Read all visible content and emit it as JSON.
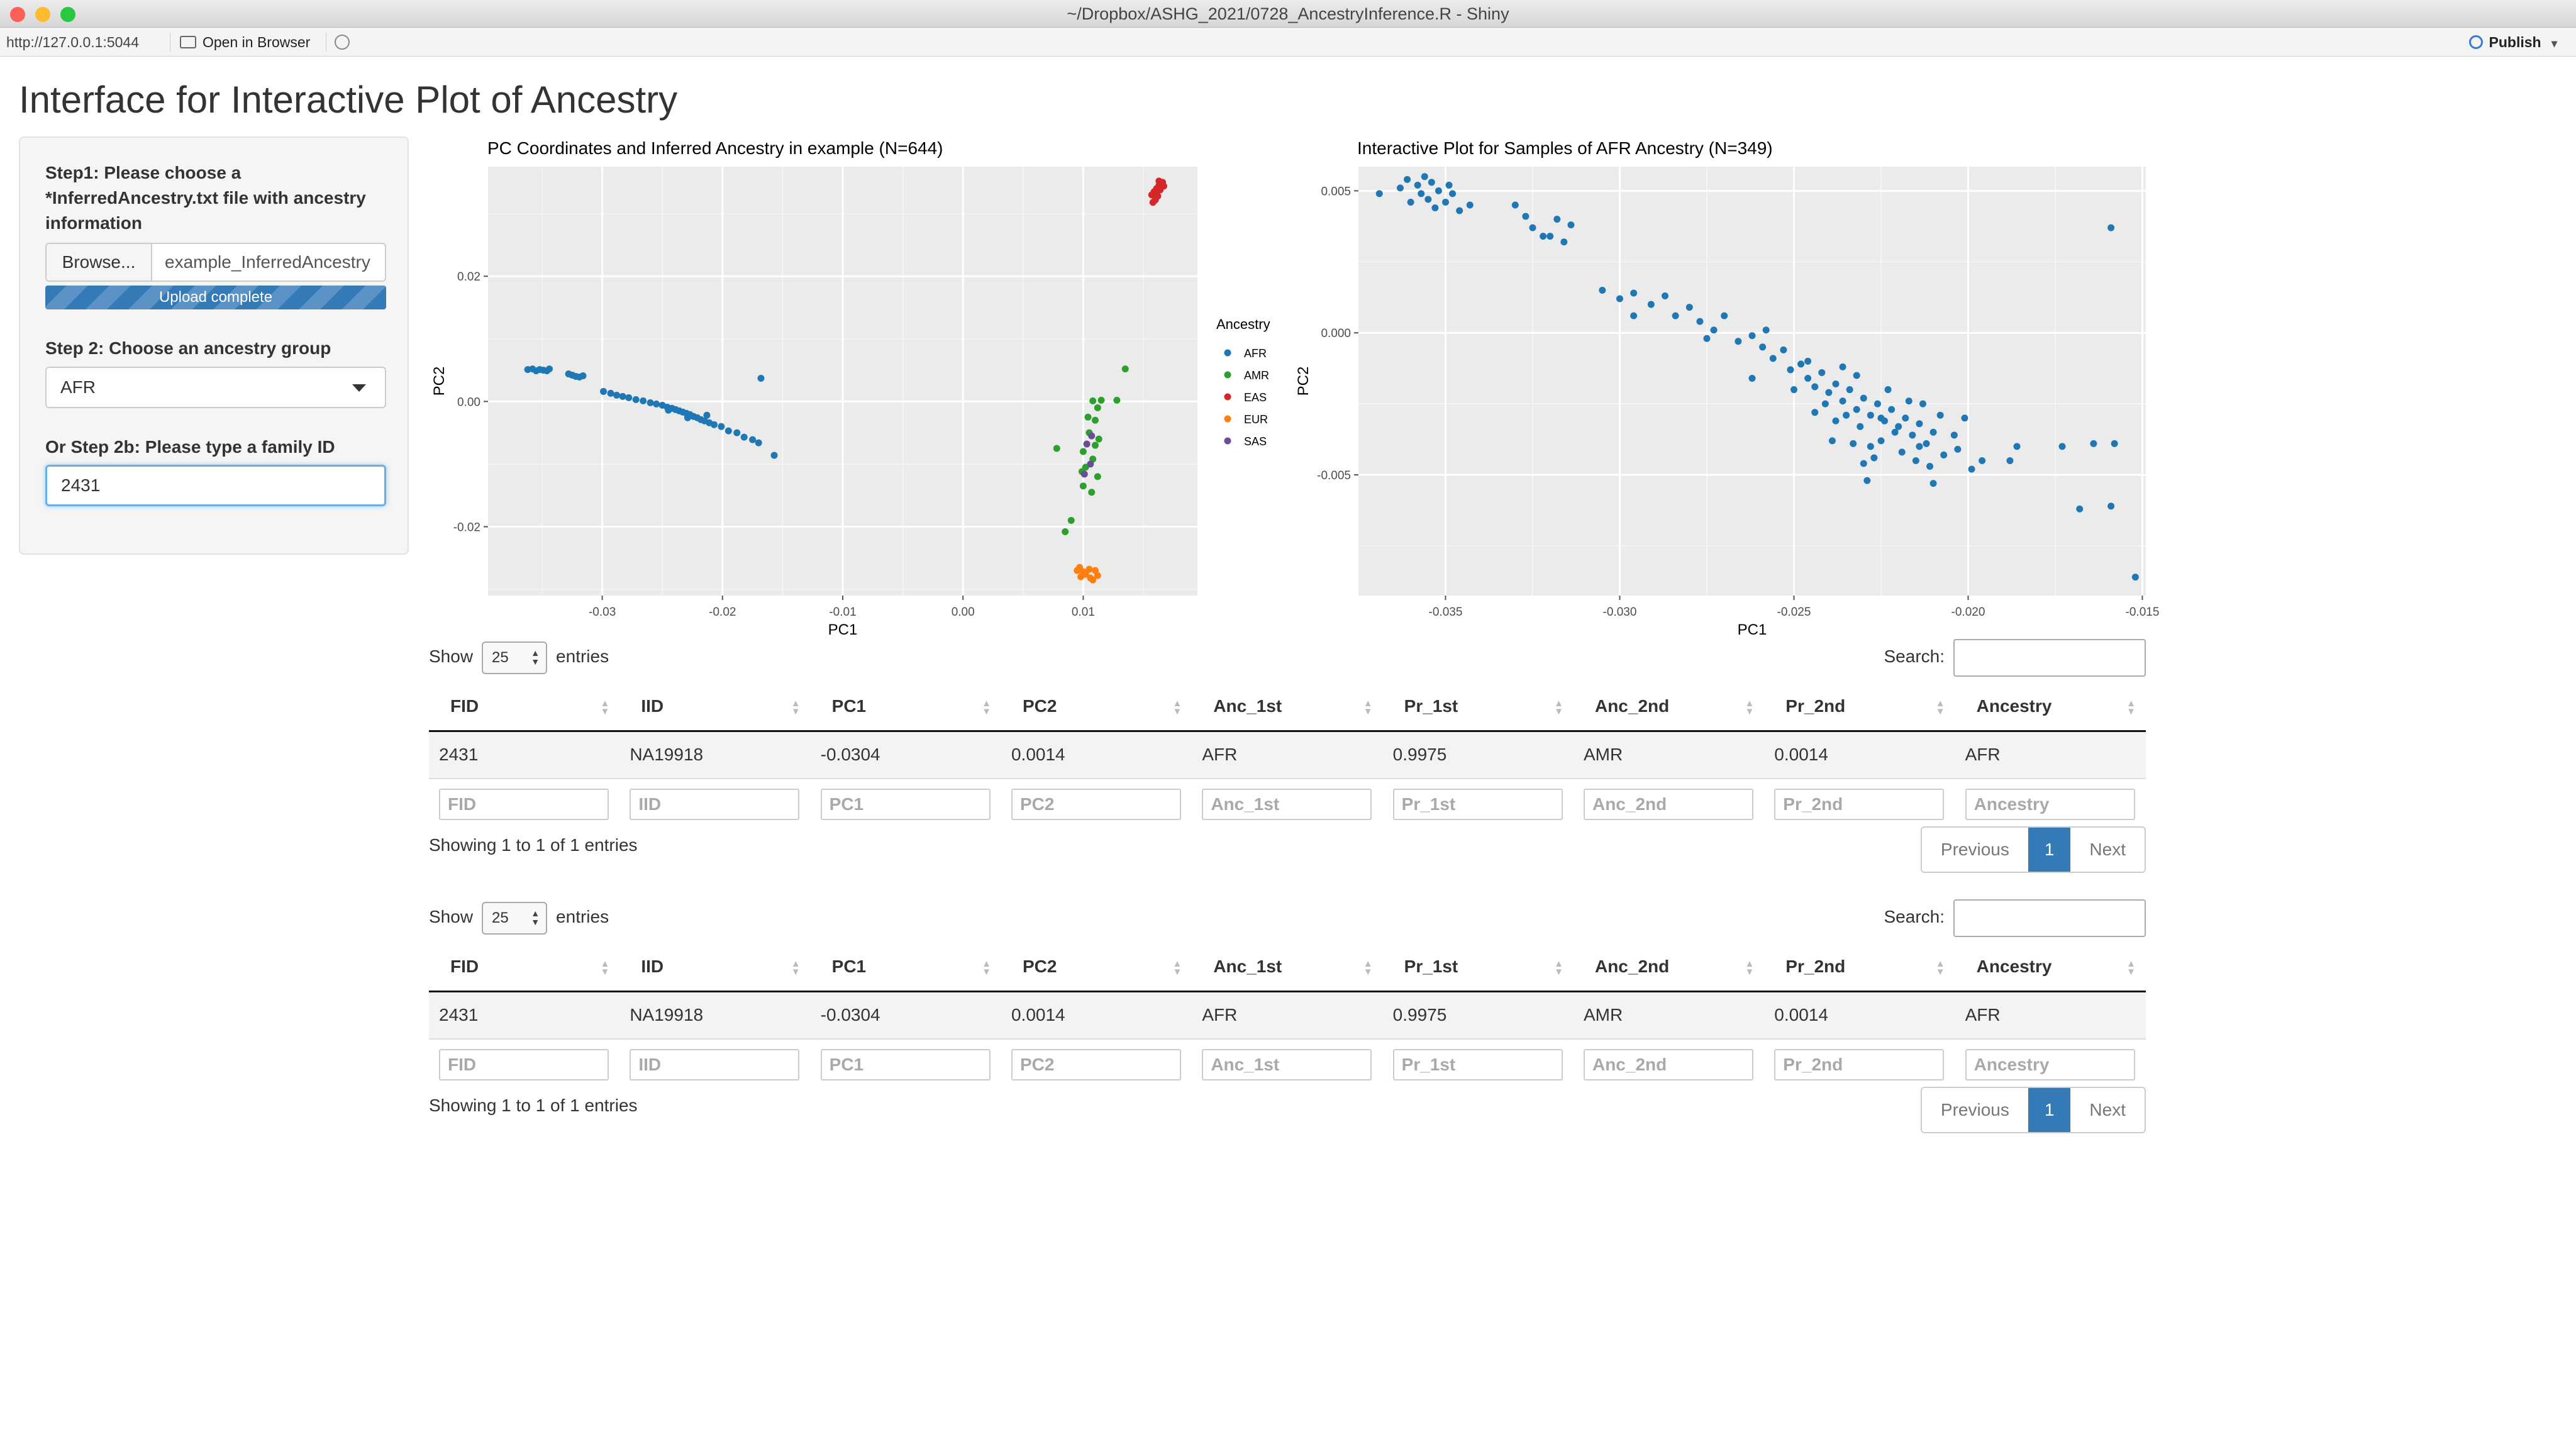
{
  "window": {
    "title": "~/Dropbox/ASHG_2021/0728_AncestryInference.R - Shiny",
    "colors": {
      "close": "#fc5f57",
      "minimize": "#fdbc2e",
      "maximize": "#28c840"
    }
  },
  "toolbar": {
    "url": "http://127.0.0.1:5044",
    "open_label": "Open in Browser",
    "publish_label": "Publish"
  },
  "app": {
    "title": "Interface for Interactive Plot of Ancestry"
  },
  "sidebar": {
    "step1_lines": [
      "Step1: Please choose a",
      "*InferredAncestry.txt file with ancestry",
      "information"
    ],
    "browse_label": "Browse...",
    "file_name": "example_InferredAncestry",
    "progress_label": "Upload complete",
    "progress_fraction": 1.0,
    "step2_label": "Step 2: Choose an ancestry group",
    "group_value": "AFR",
    "step2b_label": "Or Step 2b: Please type a family ID",
    "family_value": "2431"
  },
  "plot1": {
    "title": "PC Coordinates and Inferred Ancestry in example (N=644)"
  },
  "plot2": {
    "title": "Interactive Plot for Samples of AFR Ancestry (N=349)"
  },
  "chart_data": [
    {
      "type": "scatter",
      "title": "PC Coordinates and Inferred Ancestry in example (N=644)",
      "xlabel": "PC1",
      "ylabel": "PC2",
      "xlim": [
        -0.0395,
        0.0195
      ],
      "ylim": [
        -0.031,
        0.0375
      ],
      "xticks": [
        -0.03,
        -0.02,
        -0.01,
        0.0,
        0.01
      ],
      "xtick_labels": [
        "-0.03",
        "-0.02",
        "-0.01",
        "0.00",
        "0.01"
      ],
      "yticks": [
        -0.02,
        0.0,
        0.02
      ],
      "ytick_labels": [
        "-0.02",
        "0.00",
        "0.02"
      ],
      "grid": true,
      "legend": {
        "title": "Ancestry",
        "placement": "right"
      },
      "series": [
        {
          "name": "AFR",
          "color": "#1f77b4",
          "points": [
            [
              -0.0362,
              0.0051
            ],
            [
              -0.0358,
              0.0052
            ],
            [
              -0.0355,
              0.0049
            ],
            [
              -0.0352,
              0.0051
            ],
            [
              -0.0349,
              0.005
            ],
            [
              -0.0346,
              0.0049
            ],
            [
              -0.0344,
              0.0052
            ],
            [
              -0.0328,
              0.0044
            ],
            [
              -0.0325,
              0.0042
            ],
            [
              -0.0322,
              0.004
            ],
            [
              -0.0319,
              0.0039
            ],
            [
              -0.0316,
              0.0041
            ],
            [
              -0.0299,
              0.0016
            ],
            [
              -0.0293,
              0.0013
            ],
            [
              -0.0288,
              0.001
            ],
            [
              -0.0283,
              0.0008
            ],
            [
              -0.0278,
              0.0006
            ],
            [
              -0.0272,
              0.0003
            ],
            [
              -0.0266,
              0.0001
            ],
            [
              -0.026,
              -0.0002
            ],
            [
              -0.0255,
              -0.0004
            ],
            [
              -0.025,
              -0.0006
            ],
            [
              -0.0246,
              -0.0009
            ],
            [
              -0.0242,
              -0.0011
            ],
            [
              -0.0239,
              -0.0013
            ],
            [
              -0.0236,
              -0.0015
            ],
            [
              -0.0233,
              -0.0017
            ],
            [
              -0.023,
              -0.0019
            ],
            [
              -0.0227,
              -0.0021
            ],
            [
              -0.0224,
              -0.0024
            ],
            [
              -0.0221,
              -0.0026
            ],
            [
              -0.0218,
              -0.0029
            ],
            [
              -0.0215,
              -0.0031
            ],
            [
              -0.0211,
              -0.0034
            ],
            [
              -0.0207,
              -0.0037
            ],
            [
              -0.0201,
              -0.004
            ],
            [
              -0.0195,
              -0.0047
            ],
            [
              -0.0188,
              -0.005
            ],
            [
              -0.0182,
              -0.0057
            ],
            [
              -0.0175,
              -0.0061
            ],
            [
              -0.017,
              -0.0066
            ],
            [
              -0.0157,
              -0.0086
            ],
            [
              -0.0168,
              0.0037
            ],
            [
              -0.0245,
              -0.0014
            ],
            [
              -0.0229,
              -0.0026
            ],
            [
              -0.0213,
              -0.0022
            ]
          ]
        },
        {
          "name": "AMR",
          "color": "#2ca02c",
          "points": [
            [
              0.0135,
              0.0052
            ],
            [
              0.0128,
              0.0002
            ],
            [
              0.0115,
              0.0002
            ],
            [
              0.0108,
              0.0001
            ],
            [
              0.0112,
              -0.001
            ],
            [
              0.011,
              -0.003
            ],
            [
              0.0105,
              -0.005
            ],
            [
              0.011,
              -0.007
            ],
            [
              0.01,
              -0.008
            ],
            [
              0.0108,
              -0.0092
            ],
            [
              0.0102,
              -0.0105
            ],
            [
              0.0112,
              -0.012
            ],
            [
              0.01,
              -0.0135
            ],
            [
              0.0107,
              -0.0145
            ],
            [
              0.0078,
              -0.0075
            ],
            [
              0.009,
              -0.019
            ],
            [
              0.0085,
              -0.0208
            ],
            [
              0.0113,
              -0.006
            ],
            [
              0.0104,
              -0.0025
            ],
            [
              0.0099,
              -0.0112
            ]
          ]
        },
        {
          "name": "EAS",
          "color": "#d62728",
          "points": [
            [
              0.0157,
              0.033
            ],
            [
              0.0159,
              0.0335
            ],
            [
              0.0161,
              0.034
            ],
            [
              0.0163,
              0.0345
            ],
            [
              0.016,
              0.0322
            ],
            [
              0.0164,
              0.0338
            ],
            [
              0.0167,
              0.0344
            ],
            [
              0.0162,
              0.0328
            ],
            [
              0.0158,
              0.0318
            ],
            [
              0.0166,
              0.035
            ],
            [
              0.0163,
              0.0352
            ],
            [
              0.016,
              0.0336
            ]
          ]
        },
        {
          "name": "EUR",
          "color": "#ff7f0e",
          "points": [
            [
              0.0095,
              -0.027
            ],
            [
              0.01,
              -0.0272
            ],
            [
              0.0105,
              -0.0268
            ],
            [
              0.011,
              -0.027
            ],
            [
              0.0098,
              -0.028
            ],
            [
              0.0106,
              -0.0282
            ],
            [
              0.0102,
              -0.0276
            ],
            [
              0.0112,
              -0.0278
            ],
            [
              0.0108,
              -0.0285
            ],
            [
              0.0097,
              -0.0265
            ]
          ]
        },
        {
          "name": "SAS",
          "color": "#6b4c9a",
          "points": [
            [
              0.0103,
              -0.0068
            ],
            [
              0.0106,
              -0.01
            ],
            [
              0.0101,
              -0.0116
            ],
            [
              0.0107,
              -0.0055
            ]
          ]
        }
      ]
    },
    {
      "type": "scatter",
      "title": "Interactive Plot for Samples of AFR Ancestry (N=349)",
      "xlabel": "PC1",
      "ylabel": "PC2",
      "xlim": [
        -0.0375,
        -0.0149
      ],
      "ylim": [
        -0.00925,
        0.00585
      ],
      "xticks": [
        -0.035,
        -0.03,
        -0.025,
        -0.02,
        -0.015
      ],
      "xtick_labels": [
        "-0.035",
        "-0.030",
        "-0.025",
        "-0.020",
        "-0.015"
      ],
      "yticks": [
        -0.005,
        0.0,
        0.005
      ],
      "ytick_labels": [
        "-0.005",
        "0.000",
        "0.005"
      ],
      "grid": true,
      "series": [
        {
          "name": "",
          "color": "#1f77b4",
          "points": [
            [
              -0.0369,
              0.0049
            ],
            [
              -0.0363,
              0.0051
            ],
            [
              -0.0361,
              0.0054
            ],
            [
              -0.0358,
              0.0052
            ],
            [
              -0.0357,
              0.0049
            ],
            [
              -0.0355,
              0.0047
            ],
            [
              -0.0354,
              0.0053
            ],
            [
              -0.0352,
              0.005
            ],
            [
              -0.035,
              0.0046
            ],
            [
              -0.0348,
              0.0049
            ],
            [
              -0.0346,
              0.0043
            ],
            [
              -0.036,
              0.0046
            ],
            [
              -0.0356,
              0.0055
            ],
            [
              -0.0353,
              0.0044
            ],
            [
              -0.0349,
              0.0052
            ],
            [
              -0.0343,
              0.0045
            ],
            [
              -0.033,
              0.0045
            ],
            [
              -0.0327,
              0.0041
            ],
            [
              -0.0325,
              0.0037
            ],
            [
              -0.0322,
              0.0034
            ],
            [
              -0.0318,
              0.004
            ],
            [
              -0.032,
              0.0034
            ],
            [
              -0.0314,
              0.0038
            ],
            [
              -0.0316,
              0.0032
            ],
            [
              -0.0305,
              0.0015
            ],
            [
              -0.03,
              0.0012
            ],
            [
              -0.0296,
              0.0014
            ],
            [
              -0.0291,
              0.001
            ],
            [
              -0.0287,
              0.0013
            ],
            [
              -0.0284,
              0.0006
            ],
            [
              -0.028,
              0.0009
            ],
            [
              -0.0277,
              0.0004
            ],
            [
              -0.0273,
              0.0001
            ],
            [
              -0.027,
              0.0006
            ],
            [
              -0.0266,
              -0.0003
            ],
            [
              -0.0262,
              -0.0001
            ],
            [
              -0.0259,
              -0.0005
            ],
            [
              -0.0256,
              -0.0009
            ],
            [
              -0.0253,
              -0.0006
            ],
            [
              -0.0251,
              -0.0013
            ],
            [
              -0.0248,
              -0.0011
            ],
            [
              -0.0246,
              -0.0016
            ],
            [
              -0.0244,
              -0.0019
            ],
            [
              -0.0242,
              -0.0014
            ],
            [
              -0.024,
              -0.0021
            ],
            [
              -0.0238,
              -0.0018
            ],
            [
              -0.0236,
              -0.0024
            ],
            [
              -0.0234,
              -0.002
            ],
            [
              -0.0232,
              -0.0027
            ],
            [
              -0.023,
              -0.0023
            ],
            [
              -0.0228,
              -0.0029
            ],
            [
              -0.0226,
              -0.0025
            ],
            [
              -0.0224,
              -0.0031
            ],
            [
              -0.0222,
              -0.0027
            ],
            [
              -0.022,
              -0.0033
            ],
            [
              -0.0218,
              -0.003
            ],
            [
              -0.0216,
              -0.0036
            ],
            [
              -0.0214,
              -0.0032
            ],
            [
              -0.0212,
              -0.0039
            ],
            [
              -0.021,
              -0.0035
            ],
            [
              -0.0207,
              -0.0043
            ],
            [
              -0.0203,
              -0.0041
            ],
            [
              -0.0199,
              -0.0048
            ],
            [
              -0.0196,
              -0.0045
            ],
            [
              -0.0228,
              -0.004
            ],
            [
              -0.0235,
              -0.0029
            ],
            [
              -0.0241,
              -0.0025
            ],
            [
              -0.0225,
              -0.0038
            ],
            [
              -0.0219,
              -0.0042
            ],
            [
              -0.0231,
              -0.0033
            ],
            [
              -0.025,
              -0.002
            ],
            [
              -0.0262,
              -0.0016
            ],
            [
              -0.0238,
              -0.0031
            ],
            [
              -0.0223,
              -0.002
            ],
            [
              -0.0215,
              -0.0045
            ],
            [
              -0.0236,
              -0.0012
            ],
            [
              -0.0244,
              -0.0028
            ],
            [
              -0.0208,
              -0.0029
            ],
            [
              -0.0227,
              -0.0044
            ],
            [
              -0.0213,
              -0.0025
            ],
            [
              -0.0239,
              -0.0038
            ],
            [
              -0.0232,
              -0.0015
            ],
            [
              -0.0221,
              -0.0035
            ],
            [
              -0.0233,
              -0.0039
            ],
            [
              -0.0217,
              -0.0024
            ],
            [
              -0.023,
              -0.0046
            ],
            [
              -0.0246,
              -0.001
            ],
            [
              -0.0211,
              -0.0047
            ],
            [
              -0.0225,
              -0.003
            ],
            [
              -0.0204,
              -0.0036
            ],
            [
              -0.0258,
              0.0001
            ],
            [
              -0.0275,
              -0.0002
            ],
            [
              -0.0296,
              0.0006
            ],
            [
              -0.0229,
              -0.0052
            ],
            [
              -0.021,
              -0.0053
            ],
            [
              -0.0201,
              -0.003
            ],
            [
              -0.0214,
              -0.004
            ],
            [
              -0.0186,
              -0.004
            ],
            [
              -0.0188,
              -0.0045
            ],
            [
              -0.0173,
              -0.004
            ],
            [
              -0.0164,
              -0.0039
            ],
            [
              -0.0158,
              -0.0039
            ],
            [
              -0.0168,
              -0.0062
            ],
            [
              -0.0159,
              -0.0061
            ],
            [
              -0.0152,
              -0.0086
            ],
            [
              -0.0159,
              0.0037
            ]
          ]
        }
      ]
    }
  ],
  "tables": [
    {
      "show_prefix": "Show",
      "length_value": "25",
      "show_suffix": "entries",
      "search_label": "Search:",
      "columns": [
        "FID",
        "IID",
        "PC1",
        "PC2",
        "Anc_1st",
        "Pr_1st",
        "Anc_2nd",
        "Pr_2nd",
        "Ancestry"
      ],
      "rows": [
        [
          "2431",
          "NA19918",
          "-0.0304",
          "0.0014",
          "AFR",
          "0.9975",
          "AMR",
          "0.0014",
          "AFR"
        ]
      ],
      "info": "Showing 1 to 1 of 1 entries",
      "pager": {
        "prev": "Previous",
        "page": "1",
        "next": "Next"
      }
    },
    {
      "show_prefix": "Show",
      "length_value": "25",
      "show_suffix": "entries",
      "search_label": "Search:",
      "columns": [
        "FID",
        "IID",
        "PC1",
        "PC2",
        "Anc_1st",
        "Pr_1st",
        "Anc_2nd",
        "Pr_2nd",
        "Ancestry"
      ],
      "rows": [
        [
          "2431",
          "NA19918",
          "-0.0304",
          "0.0014",
          "AFR",
          "0.9975",
          "AMR",
          "0.0014",
          "AFR"
        ]
      ],
      "info": "Showing 1 to 1 of 1 entries",
      "pager": {
        "prev": "Previous",
        "page": "1",
        "next": "Next"
      }
    }
  ]
}
